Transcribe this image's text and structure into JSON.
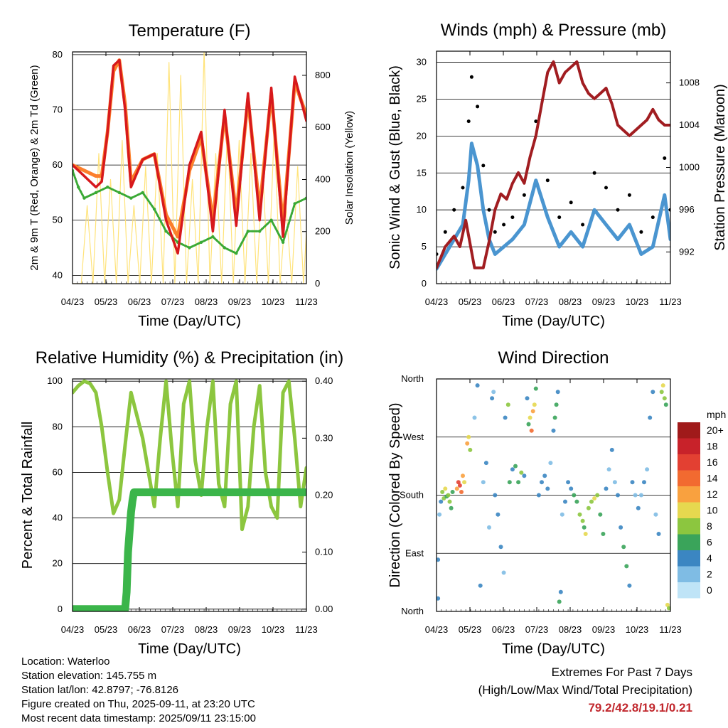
{
  "colors": {
    "t2m": "#d7191c",
    "t9m": "#fc7f2b",
    "td": "#3aa935",
    "solar": "#ffe37a",
    "gust": "#000000",
    "sonic": "#4a95d0",
    "pressure": "#a11d21",
    "rh": "#8cc63f",
    "precip": "#3bb54a",
    "extremes": "#c1272d"
  },
  "chart_data": [
    {
      "type": "line",
      "title": "Temperature (F)",
      "xlabel": "Time (Day/UTC)",
      "ylabel": "2m & 9m T (Red, Orange) & 2m Td (Green)",
      "y2label": "Solar Insolation (Yellow)",
      "x_ticks": [
        "04/23",
        "05/23",
        "06/23",
        "07/23",
        "08/23",
        "09/23",
        "10/23",
        "11/23"
      ],
      "ylim": [
        38.5,
        80.5
      ],
      "y_ticks": [
        40,
        50,
        60,
        70,
        80
      ],
      "y2lim": [
        0,
        890
      ],
      "y2_ticks": [
        0,
        200,
        400,
        600,
        800
      ],
      "grid": true,
      "series": [
        {
          "key": "t2m",
          "axis": "left",
          "x": [
            0.0,
            0.4,
            0.8,
            1.0,
            1.2,
            1.4,
            1.6,
            1.8,
            2.0,
            2.4,
            2.8,
            3.2,
            3.6,
            4.0,
            4.4,
            4.8,
            5.2,
            5.6,
            6.0,
            6.4,
            6.8,
            7.2,
            7.6,
            8.0
          ],
          "values": [
            60.0,
            58,
            56,
            57,
            66,
            78,
            79,
            70,
            56,
            61,
            62,
            50,
            44,
            60,
            66,
            48,
            70,
            49,
            73,
            50,
            74,
            47,
            76,
            68
          ]
        },
        {
          "key": "t9m",
          "axis": "left",
          "x": [
            0.0,
            0.4,
            0.8,
            1.0,
            1.2,
            1.4,
            1.6,
            1.8,
            2.0,
            2.4,
            2.8,
            3.2,
            3.6,
            4.0,
            4.4,
            4.8,
            5.2,
            5.6,
            6.0,
            6.4,
            6.8,
            7.2,
            7.6,
            8.0
          ],
          "values": [
            60.0,
            59,
            58,
            58,
            66,
            77,
            79,
            71,
            57,
            61,
            62,
            51,
            47,
            59,
            65,
            50,
            69,
            51,
            72,
            52,
            73,
            49,
            75,
            69
          ]
        },
        {
          "key": "td",
          "axis": "left",
          "x": [
            0.0,
            0.2,
            0.4,
            0.8,
            1.2,
            1.6,
            2.0,
            2.4,
            2.8,
            3.2,
            3.6,
            4.0,
            4.4,
            4.8,
            5.2,
            5.6,
            6.0,
            6.4,
            6.8,
            7.2,
            7.6,
            8.0
          ],
          "values": [
            59,
            56,
            54,
            55,
            56,
            55,
            54,
            55,
            52,
            48,
            46,
            45,
            46,
            47,
            45,
            44,
            48,
            48,
            50,
            46,
            53,
            54
          ]
        },
        {
          "key": "solar",
          "axis": "right",
          "x": [
            0.0,
            0.3,
            0.5,
            0.7,
            0.9,
            1.1,
            1.3,
            1.5,
            1.7,
            1.9,
            2.1,
            2.3,
            2.5,
            2.7,
            2.9,
            3.1,
            3.3,
            3.5,
            3.7,
            3.9,
            4.1,
            4.3,
            4.5,
            4.7,
            4.9,
            5.1,
            5.3,
            5.5,
            5.7,
            5.9,
            6.1,
            6.3,
            6.5,
            6.7,
            6.9,
            7.1,
            7.3,
            7.5,
            7.7,
            7.9,
            8.0
          ],
          "values": [
            0,
            0,
            300,
            0,
            500,
            0,
            400,
            0,
            550,
            0,
            300,
            0,
            450,
            0,
            500,
            0,
            850,
            0,
            800,
            0,
            400,
            0,
            900,
            0,
            500,
            0,
            600,
            0,
            550,
            0,
            500,
            0,
            450,
            0,
            600,
            0,
            300,
            0,
            450,
            0,
            200
          ]
        }
      ]
    },
    {
      "type": "scatter",
      "title": "Winds (mph) & Pressure (mb)",
      "xlabel": "Time (Day/UTC)",
      "ylabel": "Sonic Wind & Gust (Blue, Black)",
      "y2label": "Station Pressure (Maroon)",
      "x_ticks": [
        "04/23",
        "05/23",
        "06/23",
        "07/23",
        "08/23",
        "09/23",
        "10/23",
        "11/23"
      ],
      "ylim": [
        0,
        31.5
      ],
      "y_ticks": [
        0,
        5,
        10,
        15,
        20,
        25,
        30
      ],
      "y2lim": [
        989.0,
        1011.0
      ],
      "y2_ticks": [
        992,
        996,
        1000,
        1004,
        1008
      ],
      "grid": true,
      "series": [
        {
          "key": "gust",
          "axis": "left",
          "x": [
            0.0,
            0.3,
            0.6,
            0.9,
            1.1,
            1.2,
            1.4,
            1.6,
            1.8,
            2.0,
            2.3,
            2.6,
            3.0,
            3.4,
            3.8,
            4.2,
            4.6,
            5.0,
            5.4,
            5.8,
            6.2,
            6.6,
            7.0,
            7.4,
            7.8,
            8.0
          ],
          "values": [
            4,
            7,
            10,
            13,
            22,
            28,
            24,
            16,
            10,
            7,
            8,
            9,
            12,
            22,
            14,
            9,
            11,
            8,
            15,
            13,
            10,
            12,
            7,
            9,
            17,
            10
          ]
        },
        {
          "key": "sonic",
          "axis": "left",
          "x": [
            0.0,
            0.3,
            0.6,
            0.9,
            1.1,
            1.2,
            1.4,
            1.6,
            1.8,
            2.0,
            2.3,
            2.6,
            3.0,
            3.4,
            3.8,
            4.2,
            4.6,
            5.0,
            5.4,
            5.8,
            6.2,
            6.6,
            7.0,
            7.4,
            7.8,
            8.0
          ],
          "values": [
            2,
            4,
            6,
            8,
            14,
            19,
            16,
            10,
            6,
            4,
            5,
            6,
            8,
            14,
            9,
            5,
            7,
            5,
            10,
            8,
            6,
            8,
            4,
            5,
            12,
            6
          ]
        },
        {
          "key": "pressure",
          "axis": "right",
          "x": [
            0.0,
            0.3,
            0.6,
            0.8,
            1.0,
            1.3,
            1.6,
            1.8,
            2.0,
            2.2,
            2.4,
            2.6,
            2.8,
            3.0,
            3.2,
            3.4,
            3.6,
            3.8,
            4.0,
            4.2,
            4.4,
            4.6,
            4.8,
            5.0,
            5.2,
            5.4,
            5.6,
            5.8,
            6.0,
            6.2,
            6.4,
            6.6,
            6.8,
            7.0,
            7.2,
            7.4,
            7.6,
            7.8,
            8.0
          ],
          "values": [
            990.5,
            992.5,
            993.5,
            992.5,
            995.0,
            990.5,
            990.5,
            993.0,
            996.0,
            997.5,
            997.0,
            998.5,
            999.5,
            998.5,
            1001.0,
            1003.0,
            1006.0,
            1009.0,
            1010.0,
            1008.0,
            1009.0,
            1009.5,
            1010.0,
            1008.0,
            1007.0,
            1006.5,
            1007.0,
            1007.5,
            1006.0,
            1004.0,
            1003.5,
            1003.0,
            1003.5,
            1004.0,
            1004.5,
            1005.5,
            1004.5,
            1004.0,
            1004.0
          ]
        }
      ]
    },
    {
      "type": "line",
      "title": "Relative Humidity (%) & Precipitation (in)",
      "xlabel": "Time (Day/UTC)",
      "ylabel": "Percent & Total Rainfall",
      "x_ticks": [
        "04/23",
        "05/23",
        "06/23",
        "07/23",
        "08/23",
        "09/23",
        "10/23",
        "11/23"
      ],
      "ylim": [
        -1,
        101
      ],
      "y_ticks": [
        0,
        20,
        40,
        60,
        80,
        100
      ],
      "y2lim": [
        -0.004,
        0.404
      ],
      "y2_ticks": [
        "0.00",
        "0.10",
        "0.20",
        "0.30",
        "0.40"
      ],
      "grid": true,
      "series": [
        {
          "key": "rh",
          "axis": "left",
          "x": [
            0.0,
            0.2,
            0.4,
            0.6,
            0.8,
            1.0,
            1.2,
            1.4,
            1.6,
            1.8,
            2.0,
            2.2,
            2.4,
            2.6,
            2.8,
            3.0,
            3.2,
            3.4,
            3.6,
            3.8,
            4.0,
            4.2,
            4.4,
            4.6,
            4.8,
            5.0,
            5.2,
            5.4,
            5.6,
            5.8,
            6.0,
            6.2,
            6.4,
            6.6,
            6.8,
            7.0,
            7.2,
            7.4,
            7.6,
            7.8,
            8.0
          ],
          "values": [
            95,
            98,
            100,
            99,
            95,
            80,
            60,
            42,
            48,
            72,
            95,
            85,
            75,
            60,
            45,
            75,
            100,
            70,
            45,
            90,
            100,
            65,
            50,
            80,
            100,
            55,
            45,
            90,
            100,
            35,
            45,
            80,
            98,
            60,
            45,
            40,
            95,
            100,
            75,
            45,
            62
          ]
        },
        {
          "key": "precip",
          "axis": "right",
          "x": [
            0.0,
            1.8,
            1.85,
            1.9,
            2.0,
            2.05,
            2.1,
            8.0
          ],
          "values": [
            0.0,
            0.0,
            0.03,
            0.1,
            0.17,
            0.19,
            0.205,
            0.205
          ]
        }
      ]
    },
    {
      "type": "scatter",
      "title": "Wind Direction",
      "xlabel": "Time (Day/UTC)",
      "ylabel": "Direction (Colored By Speed)",
      "x_ticks": [
        "04/23",
        "05/23",
        "06/23",
        "07/23",
        "08/23",
        "09/23",
        "10/23",
        "11/23"
      ],
      "y_ticks": [
        "North",
        "East",
        "South",
        "West",
        "North"
      ],
      "ylim": [
        0,
        360
      ],
      "grid": true,
      "legend_title": "mph",
      "legend_labels": [
        "20+",
        "18",
        "16",
        "14",
        "12",
        "10",
        "8",
        "6",
        "4",
        "2",
        "0"
      ],
      "legend_colors": [
        "#a01a1a",
        "#c8222a",
        "#e34032",
        "#f26a30",
        "#f9a13f",
        "#e6d84f",
        "#8cc63f",
        "#3aa45a",
        "#3b86c2",
        "#7fbce4",
        "#bfe4f7"
      ],
      "points": [
        [
          0.05,
          20,
          3
        ],
        [
          0.05,
          80,
          3
        ],
        [
          0.1,
          150,
          2
        ],
        [
          0.15,
          170,
          4
        ],
        [
          0.2,
          185,
          7
        ],
        [
          0.25,
          175,
          8
        ],
        [
          0.3,
          190,
          9
        ],
        [
          0.35,
          178,
          6
        ],
        [
          0.4,
          180,
          8
        ],
        [
          0.45,
          170,
          7
        ],
        [
          0.5,
          160,
          5
        ],
        [
          0.55,
          185,
          6
        ],
        [
          0.7,
          190,
          12
        ],
        [
          0.75,
          200,
          16
        ],
        [
          0.8,
          195,
          16
        ],
        [
          0.85,
          185,
          14
        ],
        [
          0.9,
          210,
          12
        ],
        [
          0.95,
          200,
          10
        ],
        [
          1.05,
          260,
          11
        ],
        [
          1.1,
          270,
          10
        ],
        [
          1.15,
          250,
          8
        ],
        [
          1.3,
          300,
          2
        ],
        [
          1.4,
          350,
          3
        ],
        [
          1.5,
          40,
          3
        ],
        [
          1.6,
          200,
          2
        ],
        [
          1.7,
          230,
          3
        ],
        [
          1.8,
          130,
          2
        ],
        [
          1.9,
          330,
          4
        ],
        [
          1.95,
          340,
          2
        ],
        [
          2.0,
          180,
          4
        ],
        [
          2.1,
          150,
          3
        ],
        [
          2.2,
          100,
          3
        ],
        [
          2.3,
          60,
          2
        ],
        [
          2.35,
          300,
          4
        ],
        [
          2.45,
          320,
          8
        ],
        [
          2.5,
          200,
          5
        ],
        [
          2.6,
          220,
          4
        ],
        [
          2.7,
          225,
          5
        ],
        [
          2.8,
          200,
          6
        ],
        [
          2.9,
          215,
          7
        ],
        [
          3.0,
          210,
          4
        ],
        [
          3.1,
          330,
          3
        ],
        [
          3.15,
          290,
          6
        ],
        [
          3.2,
          300,
          10
        ],
        [
          3.25,
          280,
          14
        ],
        [
          3.3,
          310,
          12
        ],
        [
          3.35,
          320,
          10
        ],
        [
          3.4,
          345,
          6
        ],
        [
          3.5,
          180,
          3
        ],
        [
          3.6,
          200,
          4
        ],
        [
          3.7,
          210,
          4
        ],
        [
          3.8,
          190,
          3
        ],
        [
          3.9,
          230,
          2
        ],
        [
          4.0,
          280,
          4
        ],
        [
          4.05,
          300,
          6
        ],
        [
          4.1,
          320,
          5
        ],
        [
          4.15,
          340,
          4
        ],
        [
          4.2,
          15,
          6
        ],
        [
          4.25,
          30,
          3
        ],
        [
          4.3,
          150,
          2
        ],
        [
          4.4,
          170,
          3
        ],
        [
          4.5,
          200,
          3
        ],
        [
          4.6,
          190,
          4
        ],
        [
          4.7,
          180,
          5
        ],
        [
          4.8,
          170,
          6
        ],
        [
          4.9,
          150,
          7
        ],
        [
          5.0,
          140,
          8
        ],
        [
          5.05,
          130,
          6
        ],
        [
          5.1,
          120,
          9
        ],
        [
          5.2,
          160,
          7
        ],
        [
          5.3,
          170,
          8
        ],
        [
          5.4,
          175,
          10
        ],
        [
          5.5,
          180,
          8
        ],
        [
          5.6,
          150,
          6
        ],
        [
          5.7,
          120,
          5
        ],
        [
          5.8,
          190,
          3
        ],
        [
          5.9,
          220,
          2
        ],
        [
          6.0,
          250,
          3
        ],
        [
          6.1,
          200,
          2
        ],
        [
          6.2,
          180,
          3
        ],
        [
          6.3,
          130,
          4
        ],
        [
          6.4,
          100,
          5
        ],
        [
          6.5,
          70,
          6
        ],
        [
          6.6,
          40,
          4
        ],
        [
          6.7,
          200,
          3
        ],
        [
          6.8,
          180,
          2
        ],
        [
          6.9,
          160,
          3
        ],
        [
          7.0,
          180,
          2
        ],
        [
          7.1,
          200,
          3
        ],
        [
          7.2,
          220,
          2
        ],
        [
          7.3,
          300,
          3
        ],
        [
          7.4,
          340,
          4
        ],
        [
          7.5,
          150,
          2
        ],
        [
          7.6,
          120,
          3
        ],
        [
          7.7,
          340,
          7
        ],
        [
          7.75,
          350,
          9
        ],
        [
          7.8,
          330,
          8
        ],
        [
          7.85,
          320,
          6
        ],
        [
          7.9,
          10,
          10
        ],
        [
          7.95,
          5,
          8
        ]
      ]
    }
  ],
  "info": {
    "location": "Location: Waterloo",
    "elevation": "Station elevation: 145.755 m",
    "latlon": "Station lat/lon: 42.8797; -76.8126",
    "created": "Figure created on Thu, 2025-09-11, at 23:20 UTC",
    "recent": "Most recent data timestamp: 2025/09/11 23:15:00"
  },
  "extremes": {
    "title": "Extremes For Past 7 Days",
    "subtitle": "(High/Low/Max Wind/Total Precipitation)",
    "values": "79.2/42.8/19.1/0.21"
  }
}
